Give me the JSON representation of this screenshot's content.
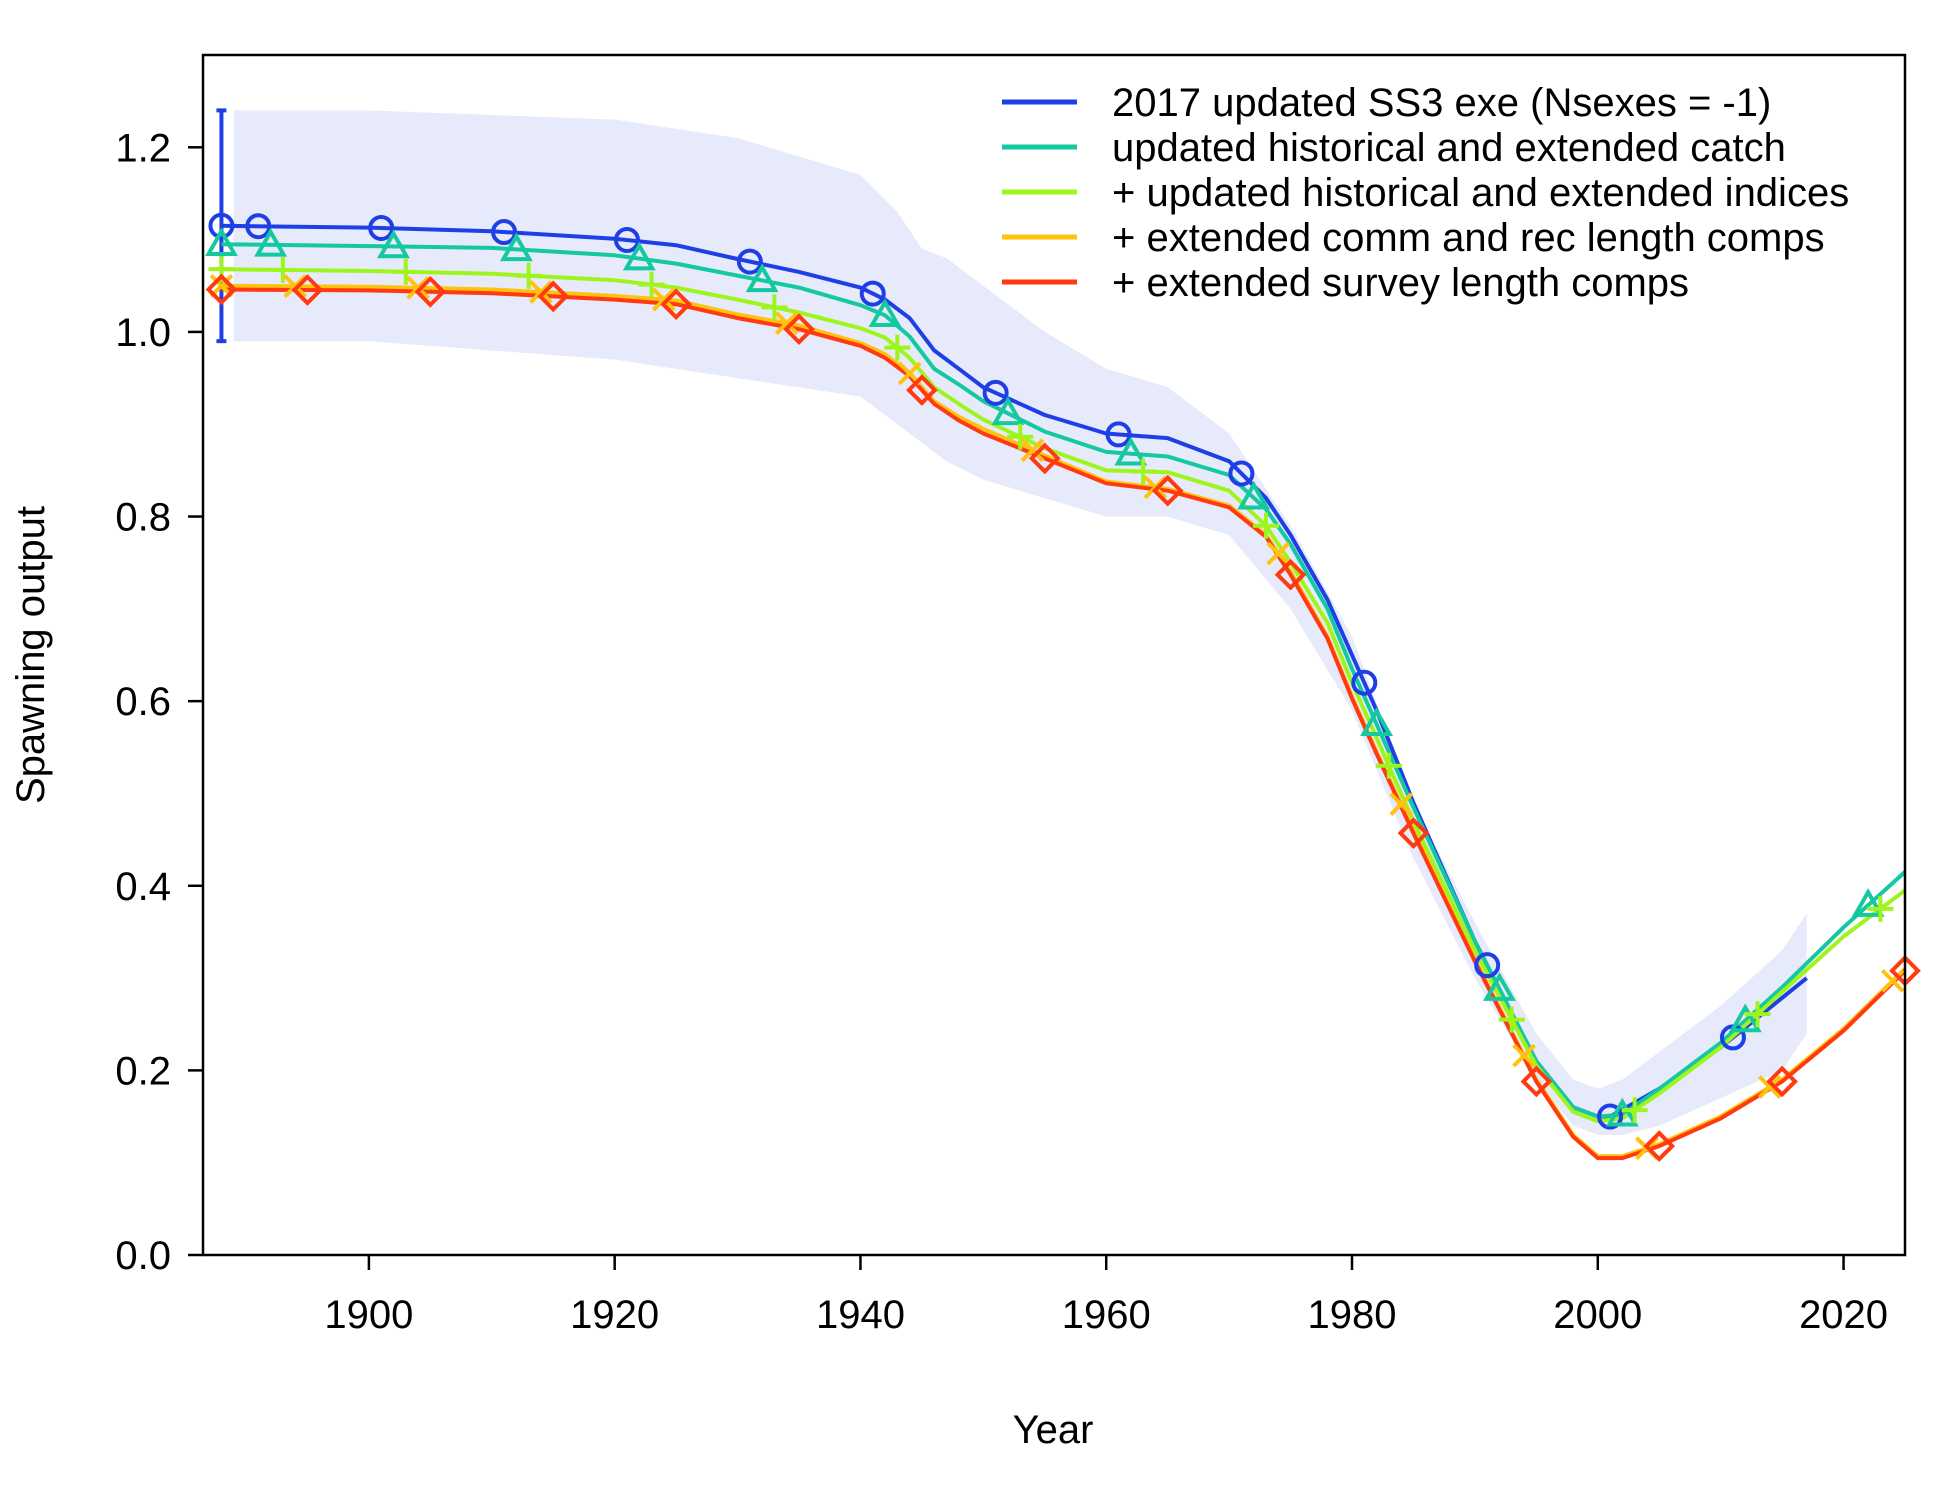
{
  "chart_data": {
    "type": "line",
    "xlabel": "Year",
    "ylabel": "Spawning output",
    "xlim": [
      1886.5,
      2025
    ],
    "ylim": [
      0,
      1.3
    ],
    "x_ticks": [
      "1900",
      "1920",
      "1940",
      "1960",
      "1980",
      "2000",
      "2020"
    ],
    "y_ticks": [
      "0.0",
      "0.2",
      "0.4",
      "0.6",
      "0.8",
      "1.0",
      "1.2"
    ],
    "x_tick_values": [
      1900,
      1920,
      1940,
      1960,
      1980,
      2000,
      2020
    ],
    "y_tick_values": [
      0,
      0.2,
      0.4,
      0.6,
      0.8,
      1.0,
      1.2
    ],
    "legend_position": "top-right",
    "uncertainty": {
      "series": "2017 updated SS3 exe (Nsexes = -1)",
      "color": "#e6eafa",
      "initial_errorbar": {
        "x": 1888,
        "low": 0.99,
        "high": 1.24
      },
      "x": [
        1889,
        1900,
        1920,
        1930,
        1940,
        1943,
        1945,
        1947,
        1950,
        1955,
        1960,
        1965,
        1970,
        1975,
        1980,
        1985,
        1990,
        1995,
        1998,
        2000,
        2002,
        2005,
        2010,
        2015,
        2017
      ],
      "upper": [
        1.24,
        1.24,
        1.23,
        1.21,
        1.17,
        1.13,
        1.09,
        1.08,
        1.05,
        1.0,
        0.96,
        0.94,
        0.89,
        0.79,
        0.67,
        0.49,
        0.36,
        0.24,
        0.19,
        0.18,
        0.19,
        0.22,
        0.27,
        0.33,
        0.37
      ],
      "lower": [
        0.99,
        0.99,
        0.97,
        0.95,
        0.93,
        0.9,
        0.88,
        0.86,
        0.84,
        0.82,
        0.8,
        0.8,
        0.78,
        0.7,
        0.59,
        0.43,
        0.3,
        0.19,
        0.14,
        0.13,
        0.13,
        0.14,
        0.17,
        0.2,
        0.24
      ]
    },
    "series": [
      {
        "name": "2017 updated SS3 exe (Nsexes = -1)",
        "color": "#1f3fe6",
        "marker": "circle",
        "x": [
          1888,
          1900,
          1910,
          1920,
          1925,
          1930,
          1935,
          1940,
          1942,
          1944,
          1946,
          1948,
          1950,
          1955,
          1960,
          1965,
          1970,
          1973,
          1975,
          1978,
          1980,
          1982,
          1985,
          1990,
          1995,
          1998,
          2000,
          2001,
          2005,
          2010,
          2017
        ],
        "y": [
          1.115,
          1.113,
          1.109,
          1.101,
          1.094,
          1.079,
          1.065,
          1.048,
          1.035,
          1.015,
          0.98,
          0.96,
          0.94,
          0.91,
          0.89,
          0.885,
          0.86,
          0.82,
          0.78,
          0.71,
          0.65,
          0.59,
          0.49,
          0.34,
          0.21,
          0.16,
          0.15,
          0.15,
          0.18,
          0.225,
          0.3
        ],
        "marker_x": [
          1888,
          1891,
          1901,
          1911,
          1921,
          1931,
          1941,
          1951,
          1961,
          1971,
          1981,
          1991,
          2001,
          2011
        ]
      },
      {
        "name": "updated historical and extended catch",
        "color": "#14c8a0",
        "marker": "triangle",
        "x": [
          1888,
          1900,
          1910,
          1920,
          1925,
          1930,
          1935,
          1940,
          1942,
          1944,
          1946,
          1948,
          1950,
          1955,
          1960,
          1965,
          1970,
          1973,
          1975,
          1978,
          1980,
          1982,
          1985,
          1990,
          1995,
          1998,
          2000,
          2002,
          2005,
          2010,
          2015,
          2020,
          2025
        ],
        "y": [
          1.095,
          1.093,
          1.091,
          1.083,
          1.074,
          1.061,
          1.048,
          1.029,
          1.018,
          0.995,
          0.96,
          0.943,
          0.925,
          0.892,
          0.87,
          0.865,
          0.845,
          0.808,
          0.77,
          0.7,
          0.635,
          0.575,
          0.485,
          0.34,
          0.21,
          0.16,
          0.15,
          0.152,
          0.18,
          0.23,
          0.29,
          0.355,
          0.415
        ],
        "marker_x": [
          1888,
          1892,
          1902,
          1912,
          1922,
          1932,
          1942,
          1952,
          1962,
          1972,
          1982,
          1992,
          2002,
          2012,
          2022
        ]
      },
      {
        "name": "+ updated historical and extended indices",
        "color": "#9ef51e",
        "marker": "plus",
        "x": [
          1888,
          1900,
          1910,
          1920,
          1925,
          1930,
          1935,
          1940,
          1942,
          1944,
          1946,
          1948,
          1950,
          1955,
          1960,
          1965,
          1970,
          1973,
          1975,
          1978,
          1980,
          1982,
          1985,
          1990,
          1995,
          1998,
          2000,
          2002,
          2005,
          2010,
          2015,
          2020,
          2025
        ],
        "y": [
          1.068,
          1.066,
          1.063,
          1.056,
          1.048,
          1.035,
          1.021,
          1.004,
          0.994,
          0.972,
          0.94,
          0.922,
          0.905,
          0.874,
          0.85,
          0.848,
          0.828,
          0.79,
          0.75,
          0.685,
          0.62,
          0.56,
          0.47,
          0.33,
          0.205,
          0.155,
          0.145,
          0.148,
          0.175,
          0.225,
          0.285,
          0.345,
          0.395
        ],
        "marker_x": [
          1888,
          1893,
          1903,
          1913,
          1923,
          1933,
          1943,
          1953,
          1963,
          1973,
          1983,
          1993,
          2003,
          2013,
          2023
        ]
      },
      {
        "name": "+ extended comm and rec length comps",
        "color": "#ffc20e",
        "marker": "cross",
        "x": [
          1888,
          1900,
          1910,
          1920,
          1925,
          1930,
          1935,
          1940,
          1942,
          1944,
          1946,
          1948,
          1950,
          1955,
          1960,
          1965,
          1970,
          1973,
          1975,
          1978,
          1980,
          1982,
          1985,
          1990,
          1995,
          1998,
          2000,
          2002,
          2005,
          2010,
          2015,
          2020,
          2025
        ],
        "y": [
          1.05,
          1.049,
          1.046,
          1.039,
          1.034,
          1.019,
          1.007,
          0.988,
          0.976,
          0.955,
          0.925,
          0.908,
          0.895,
          0.866,
          0.838,
          0.83,
          0.812,
          0.78,
          0.74,
          0.67,
          0.605,
          0.545,
          0.46,
          0.32,
          0.19,
          0.13,
          0.107,
          0.107,
          0.12,
          0.15,
          0.19,
          0.245,
          0.31
        ],
        "marker_x": [
          1888,
          1894,
          1904,
          1914,
          1924,
          1934,
          1944,
          1954,
          1964,
          1974,
          1984,
          1994,
          2004,
          2014,
          2024
        ]
      },
      {
        "name": "+ extended survey length comps",
        "color": "#ff3a10",
        "marker": "diamond",
        "x": [
          1888,
          1900,
          1910,
          1920,
          1925,
          1930,
          1935,
          1940,
          1942,
          1944,
          1946,
          1948,
          1950,
          1955,
          1960,
          1965,
          1970,
          1973,
          1975,
          1978,
          1980,
          1982,
          1985,
          1990,
          1995,
          1998,
          2000,
          2002,
          2005,
          2010,
          2015,
          2020,
          2025
        ],
        "y": [
          1.046,
          1.045,
          1.042,
          1.035,
          1.03,
          1.015,
          1.003,
          0.985,
          0.972,
          0.952,
          0.922,
          0.904,
          0.89,
          0.863,
          0.836,
          0.828,
          0.81,
          0.778,
          0.737,
          0.668,
          0.603,
          0.543,
          0.457,
          0.318,
          0.188,
          0.128,
          0.105,
          0.105,
          0.118,
          0.148,
          0.188,
          0.243,
          0.308
        ],
        "marker_x": [
          1888,
          1895,
          1905,
          1915,
          1925,
          1935,
          1945,
          1955,
          1965,
          1975,
          1985,
          1995,
          2005,
          2015,
          2025
        ]
      }
    ]
  }
}
